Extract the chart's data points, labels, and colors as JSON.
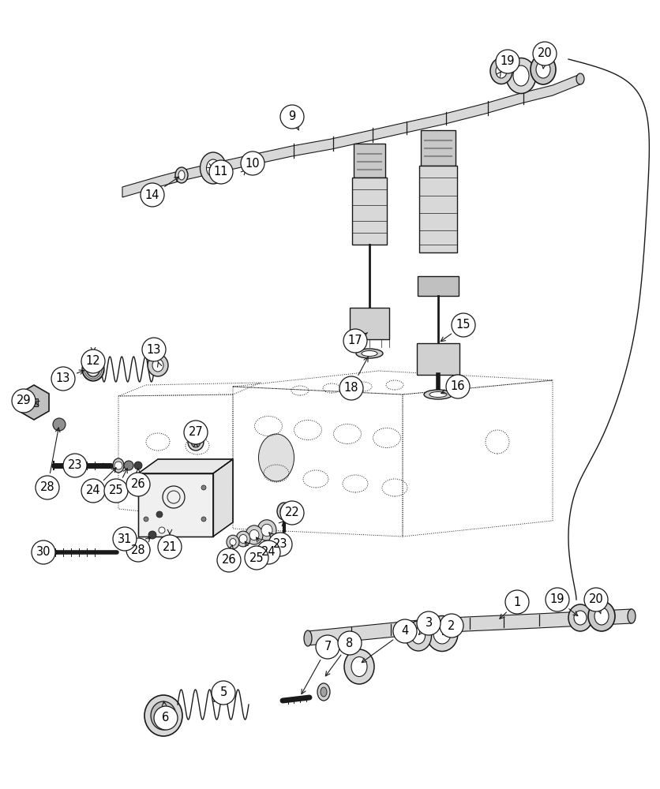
{
  "background_color": "#ffffff",
  "fig_width": 8.36,
  "fig_height": 10.0,
  "dpi": 100,
  "line_color": "#1a1a1a",
  "circle_r": 15,
  "font_size": 10.5,
  "labels": [
    [
      "1",
      655,
      763
    ],
    [
      "2",
      572,
      793
    ],
    [
      "3",
      543,
      790
    ],
    [
      "4",
      513,
      800
    ],
    [
      "5",
      283,
      878
    ],
    [
      "6",
      210,
      910
    ],
    [
      "7",
      415,
      820
    ],
    [
      "8",
      443,
      815
    ],
    [
      "9",
      370,
      148
    ],
    [
      "10",
      320,
      207
    ],
    [
      "11",
      280,
      218
    ],
    [
      "12",
      118,
      458
    ],
    [
      "13",
      80,
      480
    ],
    [
      "13",
      195,
      443
    ],
    [
      "14",
      193,
      247
    ],
    [
      "15",
      587,
      412
    ],
    [
      "16",
      580,
      490
    ],
    [
      "17",
      450,
      432
    ],
    [
      "18",
      445,
      492
    ],
    [
      "19",
      643,
      78
    ],
    [
      "19",
      706,
      760
    ],
    [
      "20",
      690,
      68
    ],
    [
      "20",
      755,
      760
    ],
    [
      "21",
      215,
      693
    ],
    [
      "22",
      370,
      650
    ],
    [
      "23",
      95,
      590
    ],
    [
      "23",
      355,
      690
    ],
    [
      "24",
      118,
      622
    ],
    [
      "24",
      340,
      700
    ],
    [
      "25",
      147,
      622
    ],
    [
      "25",
      325,
      707
    ],
    [
      "26",
      175,
      614
    ],
    [
      "26",
      290,
      710
    ],
    [
      "27",
      248,
      548
    ],
    [
      "28",
      60,
      618
    ],
    [
      "28",
      175,
      697
    ],
    [
      "29",
      30,
      508
    ],
    [
      "30",
      55,
      700
    ],
    [
      "31",
      158,
      683
    ]
  ]
}
